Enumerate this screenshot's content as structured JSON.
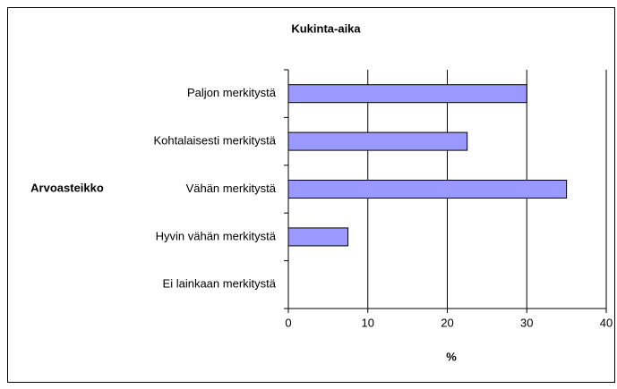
{
  "chart_data": {
    "type": "bar",
    "orientation": "horizontal",
    "title": "Kukinta-aika",
    "categories": [
      "Paljon merkitystä",
      "Kohtalaisesti merkitystä",
      "Vähän merkitystä",
      "Hyvin vähän merkitystä",
      "Ei lainkaan merkitystä"
    ],
    "values": [
      30,
      22.5,
      35,
      7.5,
      0
    ],
    "color": "#9999ff",
    "xlabel": "%",
    "ylabel": "Arvoasteikko",
    "xlim": [
      0,
      40
    ],
    "xticks": [
      0,
      10,
      20,
      30,
      40
    ],
    "grid": true
  }
}
